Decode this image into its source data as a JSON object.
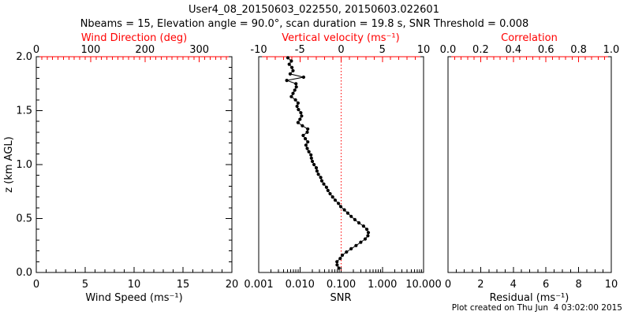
{
  "title": "User4_08_20150603_022550, 20150603.022601",
  "subtitle": "Nbeams = 15, Elevation angle = 90.0°, scan duration = 19.8 s, SNR Threshold = 0.008",
  "footer": "Plot created on Thu Jun  4 03:02:00 2015",
  "colors": {
    "accent_red": "#ff0000",
    "foreground": "#000000",
    "background": "#ffffff"
  },
  "y_axis": {
    "label": "z (km AGL)",
    "tick_labels": [
      "0.0",
      "0.5",
      "1.0",
      "1.5",
      "2.0"
    ],
    "tick_values": [
      0,
      0.5,
      1.0,
      1.5,
      2.0
    ],
    "range": [
      0,
      2
    ],
    "minor_step": 0.1
  },
  "chart_data": [
    {
      "type": "line",
      "panel": "wind",
      "x_top": {
        "label": "Wind Direction (deg)",
        "tick_labels": [
          "0",
          "100",
          "200",
          "300"
        ],
        "tick_values": [
          0,
          100,
          200,
          300
        ],
        "range": [
          0,
          360
        ],
        "minor_step": 10,
        "color": "#ff0000"
      },
      "x_bottom": {
        "label": "Wind Speed (ms⁻¹)",
        "tick_labels": [
          "0",
          "5",
          "10",
          "15",
          "20"
        ],
        "tick_values": [
          0,
          5,
          10,
          15,
          20
        ],
        "range": [
          0,
          20
        ],
        "minor_step": 1,
        "color": "#000000"
      },
      "series": []
    },
    {
      "type": "scatter",
      "panel": "snr",
      "x_top": {
        "label": "Vertical velocity (ms⁻¹)",
        "tick_labels": [
          "-10",
          "-5",
          "0",
          "5",
          "10"
        ],
        "tick_values": [
          -10,
          -5,
          0,
          5,
          10
        ],
        "range": [
          -10,
          10
        ],
        "minor_step": 1,
        "color": "#ff0000"
      },
      "x_bottom": {
        "label": "SNR",
        "scale": "log",
        "tick_labels": [
          "0.001",
          "0.010",
          "0.100",
          "1.000",
          "10.000"
        ],
        "tick_values": [
          0.001,
          0.01,
          0.1,
          1,
          10
        ],
        "range": [
          0.001,
          10
        ],
        "color": "#000000"
      },
      "ref_line": {
        "x_value": 0.1,
        "color": "#ff0000",
        "style": "dotted"
      },
      "series": [
        {
          "name": "snr-profile",
          "marker": "filled-circle",
          "color": "#000000",
          "points_format": [
            "SNR",
            "z_km"
          ],
          "points": [
            [
              0.088,
              0.04
            ],
            [
              0.08,
              0.07
            ],
            [
              0.079,
              0.1
            ],
            [
              0.095,
              0.13
            ],
            [
              0.107,
              0.16
            ],
            [
              0.135,
              0.19
            ],
            [
              0.175,
              0.22
            ],
            [
              0.23,
              0.25
            ],
            [
              0.3,
              0.28
            ],
            [
              0.383,
              0.31
            ],
            [
              0.445,
              0.34
            ],
            [
              0.457,
              0.37
            ],
            [
              0.42,
              0.4
            ],
            [
              0.35,
              0.43
            ],
            [
              0.27,
              0.46
            ],
            [
              0.215,
              0.49
            ],
            [
              0.175,
              0.52
            ],
            [
              0.145,
              0.55
            ],
            [
              0.12,
              0.58
            ],
            [
              0.098,
              0.61
            ],
            [
              0.086,
              0.64
            ],
            [
              0.072,
              0.67
            ],
            [
              0.062,
              0.7
            ],
            [
              0.054,
              0.73
            ],
            [
              0.048,
              0.76
            ],
            [
              0.044,
              0.79
            ],
            [
              0.038,
              0.82
            ],
            [
              0.034,
              0.85
            ],
            [
              0.032,
              0.88
            ],
            [
              0.028,
              0.91
            ],
            [
              0.026,
              0.94
            ],
            [
              0.025,
              0.97
            ],
            [
              0.022,
              1.0
            ],
            [
              0.02,
              1.03
            ],
            [
              0.019,
              1.06
            ],
            [
              0.0185,
              1.09
            ],
            [
              0.0165,
              1.12
            ],
            [
              0.015,
              1.15
            ],
            [
              0.014,
              1.18
            ],
            [
              0.0155,
              1.21
            ],
            [
              0.0135,
              1.24
            ],
            [
              0.012,
              1.27
            ],
            [
              0.015,
              1.3
            ],
            [
              0.0155,
              1.33
            ],
            [
              0.0115,
              1.36
            ],
            [
              0.009,
              1.39
            ],
            [
              0.01,
              1.42
            ],
            [
              0.011,
              1.45
            ],
            [
              0.0105,
              1.48
            ],
            [
              0.0092,
              1.51
            ],
            [
              0.0085,
              1.54
            ],
            [
              0.009,
              1.57
            ],
            [
              0.0078,
              1.6
            ],
            [
              0.0062,
              1.63
            ],
            [
              0.0068,
              1.66
            ],
            [
              0.0075,
              1.69
            ],
            [
              0.0082,
              1.72
            ],
            [
              0.008,
              1.75
            ],
            [
              0.0048,
              1.78
            ],
            [
              0.0123,
              1.81
            ],
            [
              0.0058,
              1.84
            ],
            [
              0.0068,
              1.87
            ],
            [
              0.0064,
              1.9
            ],
            [
              0.0055,
              1.93
            ],
            [
              0.0062,
              1.96
            ],
            [
              0.0051,
              1.99
            ]
          ]
        }
      ]
    },
    {
      "type": "line",
      "panel": "residual",
      "x_top": {
        "label": "Correlation",
        "tick_labels": [
          "0.0",
          "0.2",
          "0.4",
          "0.6",
          "0.8",
          "1.0"
        ],
        "tick_values": [
          0,
          0.2,
          0.4,
          0.6,
          0.8,
          1.0
        ],
        "range": [
          0,
          1
        ],
        "minor_step": 0.04,
        "color": "#ff0000"
      },
      "x_bottom": {
        "label": "Residual (ms⁻¹)",
        "tick_labels": [
          "0",
          "2",
          "4",
          "6",
          "8",
          "10"
        ],
        "tick_values": [
          0,
          2,
          4,
          6,
          8,
          10
        ],
        "range": [
          0,
          10
        ],
        "minor_step": 0.5,
        "color": "#000000"
      },
      "series": []
    }
  ]
}
